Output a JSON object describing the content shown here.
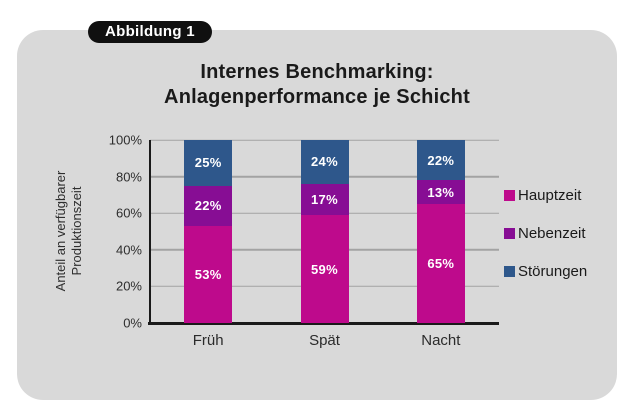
{
  "badge": {
    "label": "Abbildung 1"
  },
  "title": {
    "line1": "Internes Benchmarking:",
    "line2": "Anlagenperformance je Schicht"
  },
  "chart_data": {
    "type": "bar",
    "stacked": true,
    "title": "Internes Benchmarking: Anlagenperformance je Schicht",
    "categories": [
      "Früh",
      "Spät",
      "Nacht"
    ],
    "series": [
      {
        "name": "Hauptzeit",
        "color": "#be0a8c",
        "values": [
          53,
          59,
          65
        ]
      },
      {
        "name": "Nebenzeit",
        "color": "#870d94",
        "values": [
          22,
          17,
          13
        ]
      },
      {
        "name": "Störungen",
        "color": "#2e578b",
        "values": [
          25,
          24,
          22
        ]
      }
    ],
    "value_suffix": "%",
    "ylabel_lines": [
      "Anteil an verfügbarer",
      "Produktionszeit"
    ],
    "yticks": [
      "0%",
      "20%",
      "40%",
      "60%",
      "80%",
      "100%"
    ],
    "ylim": [
      0,
      100
    ],
    "grid": true,
    "legend_position": "right"
  }
}
